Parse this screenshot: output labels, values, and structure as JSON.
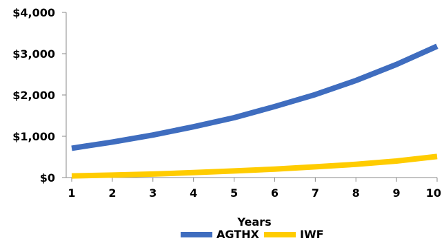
{
  "chart_data": {
    "type": "line",
    "x": [
      1,
      2,
      3,
      4,
      5,
      6,
      7,
      8,
      9,
      10
    ],
    "series": [
      {
        "name": "AGTHX",
        "color": "#3F6DBF",
        "values": [
          710,
          860,
          1030,
          1230,
          1450,
          1720,
          2010,
          2350,
          2740,
          3180
        ]
      },
      {
        "name": "IWF",
        "color": "#FFCC00",
        "values": [
          40,
          60,
          85,
          120,
          160,
          205,
          260,
          320,
          400,
          510
        ]
      }
    ],
    "xlabel": "Years",
    "ylabel": "",
    "ylim": [
      0,
      4000
    ],
    "xlim": [
      1,
      10
    ],
    "yticks": [
      "$0",
      "$1,000",
      "$2,000",
      "$3,000",
      "$4,000"
    ],
    "ytick_values": [
      0,
      1000,
      2000,
      3000,
      4000
    ],
    "xticks": [
      "1",
      "2",
      "3",
      "4",
      "5",
      "6",
      "7",
      "8",
      "9",
      "10"
    ],
    "grid": false,
    "legend_position": "bottom"
  }
}
